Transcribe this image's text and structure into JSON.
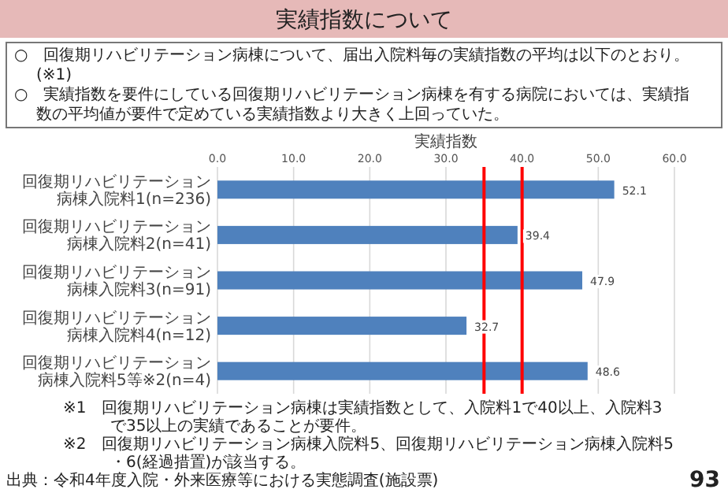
{
  "chart_data": {
    "type": "bar",
    "orientation": "horizontal",
    "title": "実績指数について",
    "xlabel": "実績指数",
    "categories": [
      "回復期リハビリテーション病棟入院料1(n=236)",
      "回復期リハビリテーション病棟入院料2(n=41)",
      "回復期リハビリテーション病棟入院料3(n=91)",
      "回復期リハビリテーション病棟入院料4(n=12)",
      "回復期リハビリテーション病棟入院料5等※2(n=4)"
    ],
    "series": [
      {
        "color": "#4f81bd",
        "values": [
          52.1,
          39.4,
          47.9,
          32.7,
          48.6
        ]
      }
    ],
    "ref_lines": [
      {
        "axis": "x",
        "value": 40,
        "color": "#ff0000"
      },
      {
        "axis": "x",
        "value": 35,
        "color": "#ff0000"
      }
    ],
    "data_labels": true,
    "grid": "x",
    "xlim": [
      0,
      60
    ],
    "xticks": [
      {
        "value": 0,
        "label": "0.0"
      },
      {
        "value": 10,
        "label": "10.0"
      },
      {
        "value": 20,
        "label": "20.0"
      },
      {
        "value": 30,
        "label": "30.0"
      },
      {
        "value": 40,
        "label": "40.0"
      },
      {
        "value": 50,
        "label": "50.0"
      },
      {
        "value": 60,
        "label": "60.0"
      }
    ],
    "annotations": [
      "○　回復期リハビリテーション病棟について、届出入院料毎の実績指数の平均は以下のとおり。(※1)",
      "○　実績指数を要件にしている回復期リハビリテーション病棟を有する病院においては、実績指数の平均値が要件で定めている実績指数より大きく上回っていた。",
      "※1　回復期リハビリテーション病棟は実績指数として、入院料1で40以上、入院料3で35以上の実績であることが要件。",
      "※2　回復期リハビリテーション病棟入院料5、回復期リハビリテーション病棟入院料5・6(経過措置)が該当する。",
      "出典：令和4年度入院・外来医療等における実態調査(施設票)",
      "93"
    ]
  }
}
